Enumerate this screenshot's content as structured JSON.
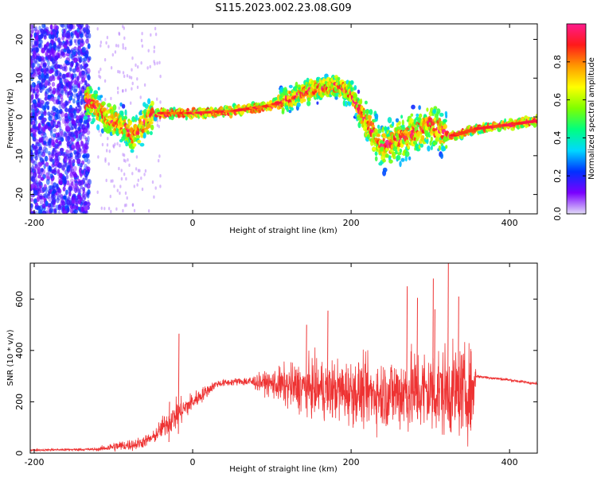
{
  "title": "S115.2023.002.23.08.G09",
  "chart_data": [
    {
      "type": "heatmap",
      "id": "spectrogram",
      "xlabel": "Height of straight line (km)",
      "ylabel": "Frequency (Hz)",
      "xlim": [
        -205,
        435
      ],
      "ylim": [
        -25,
        24
      ],
      "xticks": [
        -200,
        0,
        200,
        400
      ],
      "yticks": [
        -20,
        -10,
        0,
        10,
        20
      ],
      "colorbar": {
        "label": "Normalized spectral amplitude",
        "range": [
          0,
          1
        ],
        "ticks": [
          0.0,
          0.2,
          0.4,
          0.6,
          0.8
        ],
        "colormap": [
          "#e2dcf8",
          "#7a00ff",
          "#0030ff",
          "#00d8ff",
          "#00ff80",
          "#7fff00",
          "#ffff00",
          "#ff9900",
          "#ff1a1a",
          "#ff1a8c"
        ]
      },
      "ridge": [
        {
          "x": -130,
          "f": 4
        },
        {
          "x": -110,
          "f": 0
        },
        {
          "x": -90,
          "f": -2
        },
        {
          "x": -75,
          "f": -5
        },
        {
          "x": -55,
          "f": 0
        },
        {
          "x": -40,
          "f": 1
        },
        {
          "x": 0,
          "f": 1
        },
        {
          "x": 50,
          "f": 1.5
        },
        {
          "x": 100,
          "f": 3
        },
        {
          "x": 150,
          "f": 7
        },
        {
          "x": 180,
          "f": 8
        },
        {
          "x": 200,
          "f": 6
        },
        {
          "x": 215,
          "f": 0
        },
        {
          "x": 240,
          "f": -8
        },
        {
          "x": 270,
          "f": -5
        },
        {
          "x": 300,
          "f": -2
        },
        {
          "x": 325,
          "f": -5
        },
        {
          "x": 360,
          "f": -3
        },
        {
          "x": 400,
          "f": -2
        },
        {
          "x": 435,
          "f": -1
        }
      ]
    },
    {
      "type": "line",
      "id": "snr",
      "xlabel": "Height of straight line (km)",
      "ylabel": "SNR (10 * v/v)",
      "xlim": [
        -205,
        435
      ],
      "ylim": [
        0,
        740
      ],
      "xticks": [
        -200,
        0,
        200,
        400
      ],
      "yticks": [
        0,
        200,
        400,
        600
      ],
      "color": "#ee3333",
      "envelope": [
        {
          "x": -205,
          "mean": 12,
          "noise": 4
        },
        {
          "x": -120,
          "mean": 15,
          "noise": 6
        },
        {
          "x": -100,
          "mean": 25,
          "noise": 20
        },
        {
          "x": -70,
          "mean": 35,
          "noise": 25
        },
        {
          "x": -50,
          "mean": 60,
          "noise": 25
        },
        {
          "x": -35,
          "mean": 110,
          "noise": 50
        },
        {
          "x": -20,
          "mean": 150,
          "noise": 60
        },
        {
          "x": 0,
          "mean": 200,
          "noise": 40
        },
        {
          "x": 30,
          "mean": 270,
          "noise": 15
        },
        {
          "x": 60,
          "mean": 280,
          "noise": 15
        },
        {
          "x": 90,
          "mean": 275,
          "noise": 40
        },
        {
          "x": 120,
          "mean": 260,
          "noise": 90
        },
        {
          "x": 160,
          "mean": 250,
          "noise": 120
        },
        {
          "x": 200,
          "mean": 240,
          "noise": 130
        },
        {
          "x": 240,
          "mean": 230,
          "noise": 140
        },
        {
          "x": 270,
          "mean": 240,
          "noise": 170
        },
        {
          "x": 300,
          "mean": 240,
          "noise": 180
        },
        {
          "x": 355,
          "mean": 240,
          "noise": 180
        },
        {
          "x": 357,
          "mean": 300,
          "noise": 6
        },
        {
          "x": 400,
          "mean": 285,
          "noise": 6
        },
        {
          "x": 435,
          "mean": 270,
          "noise": 6
        }
      ],
      "peaks": [
        {
          "x": -18,
          "y": 465
        },
        {
          "x": -30,
          "y": 200
        },
        {
          "x": 170,
          "y": 555
        },
        {
          "x": 143,
          "y": 500
        },
        {
          "x": 270,
          "y": 650
        },
        {
          "x": 283,
          "y": 605
        },
        {
          "x": 303,
          "y": 680
        },
        {
          "x": 322,
          "y": 740
        },
        {
          "x": 335,
          "y": 610
        },
        {
          "x": 305,
          "y": 560
        }
      ]
    }
  ]
}
